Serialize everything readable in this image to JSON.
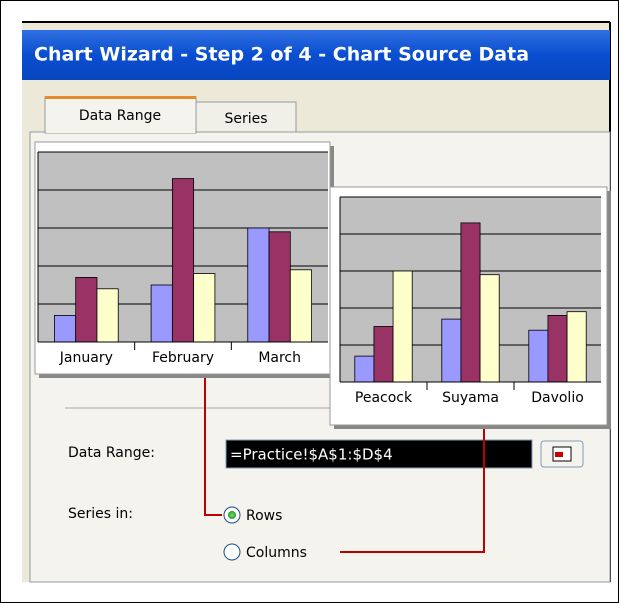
{
  "dialog": {
    "title": "Chart Wizard - Step 2 of 4 - Chart Source Data",
    "tabs": [
      "Data Range",
      "Series"
    ],
    "data_range_label": "Data Range:",
    "data_range_value": "=Practice!$A$1:$D$4",
    "series_in_label": "Series in:",
    "options": [
      "Rows",
      "Columns"
    ]
  },
  "chart_data": [
    {
      "type": "bar",
      "categories": [
        "January",
        "February",
        "March"
      ],
      "series": [
        {
          "color": "#9999ff",
          "values": [
            0.7,
            1.5,
            3.0
          ]
        },
        {
          "color": "#993366",
          "values": [
            1.7,
            4.3,
            2.9
          ]
        },
        {
          "color": "#ffffcc",
          "values": [
            1.4,
            1.8,
            1.9
          ]
        }
      ],
      "ylim": [
        0,
        5
      ],
      "yticks": [
        0,
        1,
        2,
        3,
        4,
        5
      ],
      "grid": true
    },
    {
      "type": "bar",
      "categories": [
        "Peacock",
        "Suyama",
        "Davolio"
      ],
      "series": [
        {
          "color": "#9999ff",
          "values": [
            0.7,
            1.7,
            1.4
          ]
        },
        {
          "color": "#993366",
          "values": [
            1.5,
            4.3,
            1.8
          ]
        },
        {
          "color": "#ffffcc",
          "values": [
            3.0,
            2.9,
            1.9
          ]
        }
      ],
      "ylim": [
        0,
        5
      ],
      "yticks": [
        0,
        1,
        2,
        3,
        4,
        5
      ],
      "grid": true
    }
  ]
}
